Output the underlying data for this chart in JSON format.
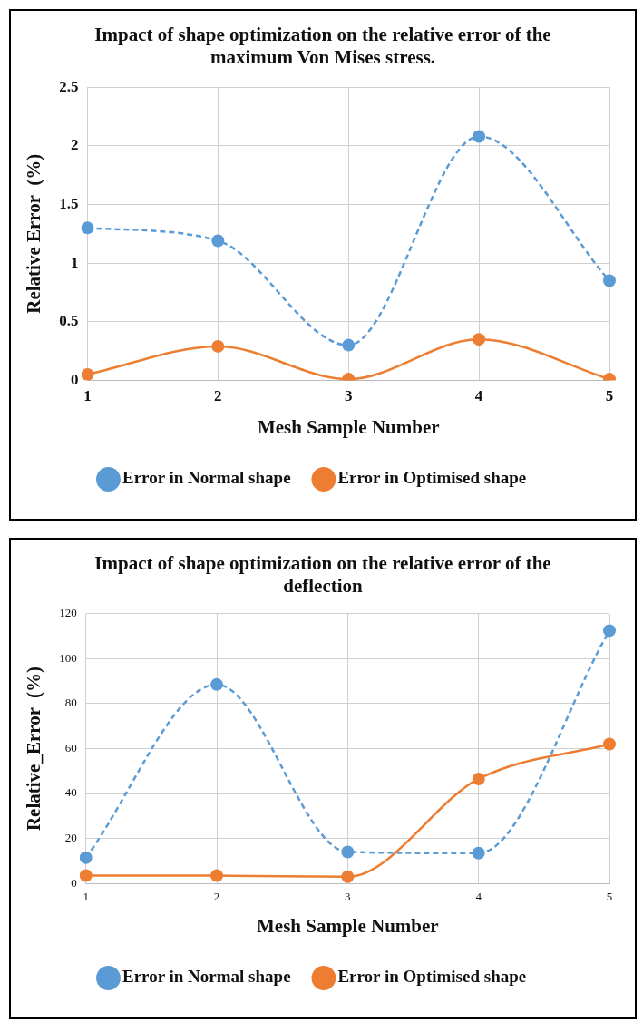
{
  "chart_data": [
    {
      "type": "line",
      "title": "Impact of shape optimization on the relative error of the maximum Von Mises stress.",
      "xlabel": "Mesh Sample Number",
      "ylabel": "Relative Error  (%)",
      "categories": [
        "1",
        "2",
        "3",
        "4",
        "5"
      ],
      "series": [
        {
          "name": "Error in Normal shape",
          "color": "#5b9bd5",
          "values": [
            1.3,
            1.19,
            0.3,
            2.08,
            0.85
          ],
          "line_style": "dashed"
        },
        {
          "name": "Error in Optimised shape",
          "color": "#ed7d31",
          "values": [
            0.05,
            0.29,
            0.01,
            0.35,
            0.01
          ],
          "line_style": "solid"
        }
      ],
      "ylim": [
        0,
        2.5
      ],
      "yticks": [
        0,
        0.5,
        1,
        1.5,
        2,
        2.5
      ],
      "grid": true,
      "legend": "bottom",
      "marker": "circle"
    },
    {
      "type": "line",
      "title": "Impact of shape optimization on the relative error of the deflection",
      "xlabel": "Mesh Sample Number",
      "ylabel": "Relative_Error  (%)",
      "categories": [
        "1",
        "2",
        "3",
        "4",
        "5"
      ],
      "series": [
        {
          "name": "Error in Normal shape",
          "color": "#5b9bd5",
          "values": [
            11.5,
            88.5,
            14,
            13.5,
            112.5
          ],
          "line_style": "dashed"
        },
        {
          "name": "Error in Optimised shape",
          "color": "#ed7d31",
          "values": [
            3.5,
            3.5,
            3,
            46.5,
            62
          ],
          "line_style": "solid"
        }
      ],
      "ylim": [
        0,
        120
      ],
      "yticks": [
        0,
        20,
        40,
        60,
        80,
        100,
        120
      ],
      "grid": true,
      "legend": "bottom",
      "marker": "circle"
    }
  ]
}
